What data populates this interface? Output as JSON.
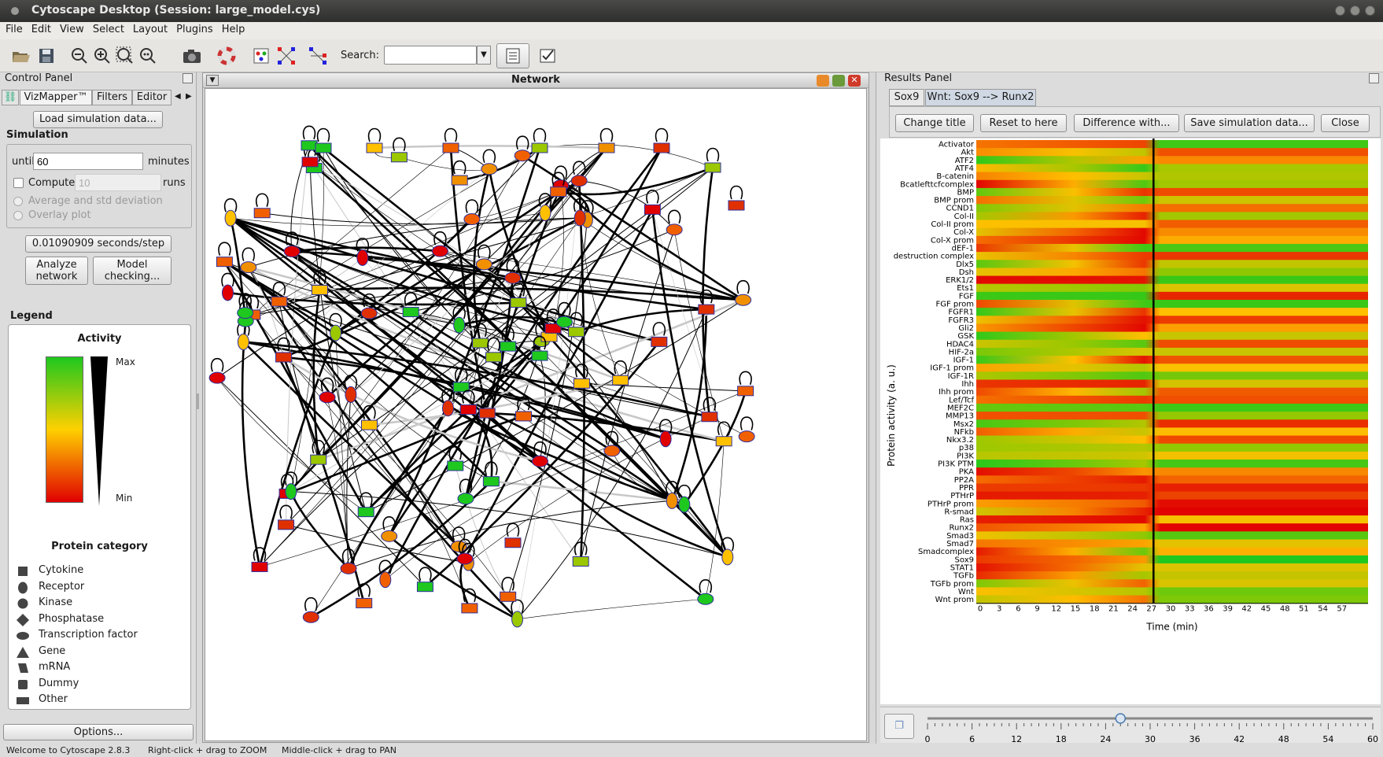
{
  "window": {
    "title": "Cytoscape Desktop (Session: large_model.cys)"
  },
  "menu": [
    "File",
    "Edit",
    "View",
    "Select",
    "Layout",
    "Plugins",
    "Help"
  ],
  "toolbar": {
    "search_label": "Search:",
    "search_value": "",
    "icons": [
      "open-folder-icon",
      "save-icon",
      "zoom-out-icon",
      "zoom-in-icon",
      "zoom-fit-icon",
      "zoom-selected-icon",
      "camera-icon",
      "lifebuoy-icon",
      "vizmapper-icon",
      "network-layout-icon",
      "network-layout-2-icon",
      "list-icon",
      "checklist-icon"
    ]
  },
  "control_panel": {
    "title": "Control Panel",
    "tabs": [
      "VizMapper™",
      "Filters",
      "Editor"
    ],
    "load_button": "Load simulation data...",
    "simulation_heading": "Simulation",
    "until_label": "until",
    "until_value": "60",
    "minutes_label": "minutes",
    "compute_label": "Compute",
    "compute_value": "10",
    "runs_label": "runs",
    "compute_checked": false,
    "option_avg": "Average and std deviation",
    "option_overlay": "Overlay plot",
    "step_button": "0.01090909 seconds/step",
    "analyze_button": "Analyze network",
    "model_button": "Model checking...",
    "legend_heading": "Legend",
    "activity_title": "Activity",
    "max_label": "Max",
    "min_label": "Min",
    "category_title": "Protein category",
    "categories": [
      {
        "label": "Cytokine",
        "icon": "square-icon"
      },
      {
        "label": "Receptor",
        "icon": "tall-ellipse-icon"
      },
      {
        "label": "Kinase",
        "icon": "circle-icon"
      },
      {
        "label": "Phosphatase",
        "icon": "diamond-icon"
      },
      {
        "label": "Transcription factor",
        "icon": "wide-ellipse-icon"
      },
      {
        "label": "Gene",
        "icon": "triangle-icon"
      },
      {
        "label": "mRNA",
        "icon": "parallelogram-icon"
      },
      {
        "label": "Dummy",
        "icon": "rounded-square-icon"
      },
      {
        "label": "Other",
        "icon": "rectangle-icon"
      }
    ],
    "options_button": "Options..."
  },
  "network": {
    "title": "Network"
  },
  "results": {
    "title": "Results Panel",
    "tabs": [
      "Sox9",
      "Wnt: Sox9 --> Runx2"
    ],
    "buttons": [
      "Change title",
      "Reset to here",
      "Difference with...",
      "Save simulation data...",
      "Close"
    ],
    "ylabel": "Protein activity (a. u.)",
    "xlabel": "Time (min)",
    "proteins": [
      "Activator",
      "Akt",
      "ATF2",
      "ATF4",
      "B-catenin",
      "Bcatlefttcfcomplex",
      "BMP",
      "BMP prom",
      "CCND1",
      "Col-II",
      "Col-II prom",
      "Col-X",
      "Col-X prom",
      "dEF-1",
      "destruction complex",
      "Dlx5",
      "Dsh",
      "ERK1/2",
      "Ets1",
      "FGF",
      "FGF prom",
      "FGFR1",
      "FGFR3",
      "Gli2",
      "GSK",
      "HDAC4",
      "HIF-2a",
      "IGF-1",
      "IGF-1 prom",
      "IGF-1R",
      "Ihh",
      "Ihh prom",
      "Lef/Tcf",
      "MEF2C",
      "MMP13",
      "Msx2",
      "NFkb",
      "Nkx3.2",
      "p38",
      "PI3K",
      "PI3K PTM",
      "PKA",
      "PP2A",
      "PPR",
      "PTHrP",
      "PTHrP prom",
      "R-smad",
      "Ras",
      "Runx2",
      "Smad3",
      "Smad7",
      "Smadcomplex",
      "Sox9",
      "STAT1",
      "TGFb",
      "TGFb prom",
      "Wnt",
      "Wnt prom"
    ],
    "x_ticks": [
      "0",
      "3",
      "6",
      "9",
      "12",
      "15",
      "18",
      "21",
      "24",
      "27",
      "30",
      "33",
      "36",
      "39",
      "42",
      "45",
      "48",
      "51",
      "54",
      "57"
    ],
    "slider_ticks": [
      "0",
      "6",
      "12",
      "18",
      "24",
      "30",
      "36",
      "42",
      "48",
      "54",
      "60"
    ],
    "slider_value": 26
  },
  "status": {
    "left": "Welcome to Cytoscape 2.8.3",
    "mid": "Right-click + drag to ZOOM",
    "right": "Middle-click + drag to PAN"
  },
  "colors": {
    "max": "#1ec81e",
    "mid": "#ffc000",
    "min": "#e00000"
  }
}
